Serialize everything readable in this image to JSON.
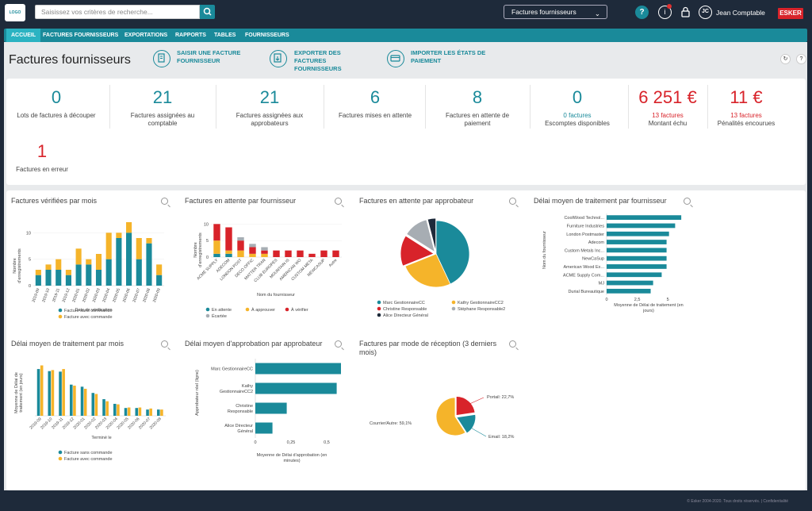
{
  "topbar": {
    "search_placeholder": "Saisissez vos critères de recherche...",
    "view": "Factures fournisseurs",
    "user_initials": "JC",
    "user_name": "Jean Comptable",
    "brand": "ESKER"
  },
  "nav": [
    "ACCUEIL",
    "FACTURES FOURNISSEURS",
    "EXPORTATIONS",
    "RAPPORTS",
    "TABLES",
    "FOURNISSEURS"
  ],
  "header": {
    "title": "Factures fournisseurs",
    "actions": [
      [
        "SAISIR UNE FACTURE",
        "FOURNISSEUR"
      ],
      [
        "EXPORTER DES",
        "FACTURES",
        "FOURNISSEURS"
      ],
      [
        "IMPORTER LES ÉTATS DE",
        "PAIEMENT"
      ]
    ]
  },
  "kpis": [
    {
      "value": "0",
      "label": [
        "Lots de factures à découper"
      ]
    },
    {
      "value": "21",
      "label": [
        "Factures assignées au",
        "comptable"
      ]
    },
    {
      "value": "21",
      "label": [
        "Factures assignées aux",
        "approbateurs"
      ]
    },
    {
      "value": "6",
      "label": [
        "Factures mises en attente"
      ]
    },
    {
      "value": "8",
      "label": [
        "Factures en attente de",
        "paiement"
      ]
    },
    {
      "value": "0",
      "sub": "0 factures",
      "label": [
        "Escomptes disponibles"
      ]
    },
    {
      "value": "6 251 €",
      "sub": "13 factures",
      "label": [
        "Montant échu"
      ],
      "red": true
    },
    {
      "value": "11 €",
      "sub": "13 factures",
      "label": [
        "Pénalités encourues"
      ],
      "red": true
    },
    {
      "value": "1",
      "label": [
        "Factures en erreur"
      ],
      "red": true
    }
  ],
  "colors": {
    "teal": "#1a8a9a",
    "yellow": "#f5b42a",
    "red": "#d8232a",
    "gray": "#a7adb3",
    "navy": "#1e2a3a"
  },
  "chart_data": [
    {
      "type": "bar",
      "title": "Factures vérifiées par mois",
      "xlabel": "Date de vérification",
      "ylabel": "Nombre d'enregistrements",
      "ylim": [
        0,
        12
      ],
      "yticks": [
        0,
        5,
        10
      ],
      "categories": [
        "2019-09",
        "2019-10",
        "2019-11",
        "2019-12",
        "2020-01",
        "2020-02",
        "2020-03",
        "2020-04",
        "2020-05",
        "2020-06",
        "2020-07",
        "2020-08",
        "2020-09"
      ],
      "series": [
        {
          "name": "Facture sans commande",
          "values": [
            2,
            3,
            3,
            2,
            4,
            4,
            3,
            5,
            9,
            10,
            5,
            8,
            2
          ]
        },
        {
          "name": "Facture avec commande",
          "values": [
            1,
            1,
            2,
            1,
            3,
            1,
            3,
            5,
            1,
            2,
            4,
            1,
            2
          ]
        }
      ],
      "legend": "bottom"
    },
    {
      "type": "bar",
      "title": "Factures en attente par fournisseur",
      "xlabel": "Nom du fournisseur",
      "ylabel": "Nombre d'enregistrements",
      "ylim": [
        0,
        12
      ],
      "yticks": [
        0,
        5,
        10
      ],
      "categories": [
        "ACME SUPPLY",
        "ADECOM",
        "LONDON POST",
        "DECO OFFIC",
        "MATTER TRAN",
        "CLUB EUROPES",
        "MOUNTAIN IS",
        "AMERICAN WO",
        "CUSTOM META",
        "NEWCASUP",
        "Autre"
      ],
      "series": [
        {
          "name": "En attente",
          "values": [
            1,
            1,
            0,
            0,
            0,
            0,
            0,
            0,
            0,
            0,
            0
          ]
        },
        {
          "name": "À approuver",
          "values": [
            4,
            1,
            2,
            1,
            1,
            0,
            0,
            0,
            0,
            0,
            0
          ]
        },
        {
          "name": "À vérifier",
          "values": [
            5,
            7,
            3,
            2,
            1,
            2,
            2,
            2,
            1,
            2,
            2
          ]
        },
        {
          "name": "Écartée",
          "values": [
            0,
            0,
            1,
            1,
            1,
            0,
            0,
            0,
            0,
            0,
            0
          ]
        }
      ],
      "legend": "bottom"
    },
    {
      "type": "pie",
      "title": "Factures en attente par approbateur",
      "labels": [
        "Marc GestionnaireCC",
        "Kathy GestionnaireCC2",
        "Christine Responsable",
        "Stéphane Responsable2",
        "Alice Directeur Général"
      ],
      "values": [
        43,
        26,
        15,
        12,
        4
      ],
      "legend": "bottom"
    },
    {
      "type": "bar",
      "orientation": "horizontal",
      "title": "Délai moyen de traitement par fournisseur",
      "xlabel": "Moyenne de Délai de traitement (en jours)",
      "ylabel": "Nom du fournisseur",
      "xlim": [
        0,
        7
      ],
      "xticks": [
        0,
        2.5,
        5
      ],
      "categories": [
        "CoolWood Technol...",
        "Furniture Industries",
        "London Postmaster",
        "Adecom",
        "Custom Metals Inc...",
        "NewCaSup",
        "American Wood Ex...",
        "ACME Supply Com...",
        "MJ",
        "Durial Bureautique"
      ],
      "values": [
        6.1,
        5.6,
        5.1,
        4.9,
        4.9,
        4.9,
        4.9,
        4.5,
        3.8,
        3.6
      ]
    },
    {
      "type": "bar",
      "title": "Délai moyen de traitement par mois",
      "xlabel": "Terminé le",
      "ylabel": "Moyenne de Délai de traitement (en jours)",
      "ylim": [
        0,
        11
      ],
      "categories": [
        "2019-09",
        "2019-10",
        "2019-11",
        "2019-12",
        "2020-01",
        "2020-02",
        "2020-03",
        "2020-04",
        "2020-05",
        "2020-06",
        "2020-07",
        "2020-08"
      ],
      "series": [
        {
          "name": "Facture sans commande",
          "values": [
            9,
            8.6,
            8.5,
            6,
            5.6,
            4.4,
            3.2,
            2.3,
            1.5,
            1.5,
            1.2,
            1.2
          ]
        },
        {
          "name": "Facture avec commande",
          "values": [
            9.7,
            8.8,
            9,
            5.8,
            5.2,
            4.2,
            2.8,
            2.2,
            1.6,
            1.6,
            1.4,
            1.2
          ]
        }
      ],
      "legend": "bottom"
    },
    {
      "type": "bar",
      "orientation": "horizontal",
      "title": "Délai moyen d'approbation par approbateur",
      "xlabel": "Moyenne de Délai d'approbation (en minutes)",
      "ylabel": "Approbateur réel (ligne)",
      "xlim": [
        0,
        0.6
      ],
      "xticks": [
        0,
        0.25,
        0.5
      ],
      "categories": [
        [
          "Marc GestionnaireCC"
        ],
        [
          "Kathy",
          "GestionnaireCC2"
        ],
        [
          "Christine",
          "Responsable"
        ],
        [
          "Alice Directeur",
          "Général"
        ]
      ],
      "values": [
        0.6,
        0.57,
        0.22,
        0.12
      ]
    },
    {
      "type": "pie",
      "title": [
        "Factures par mode de réception (3 derniers",
        "mois)"
      ],
      "labels": [
        "Portail: 22,7%",
        "Email: 18,2%",
        "Courrier/Autre: 59,1%"
      ],
      "values": [
        22.7,
        18.2,
        59.1
      ]
    }
  ],
  "footer": "© Esker 2004-2020. Tous droits réservés. | Confidentialité"
}
